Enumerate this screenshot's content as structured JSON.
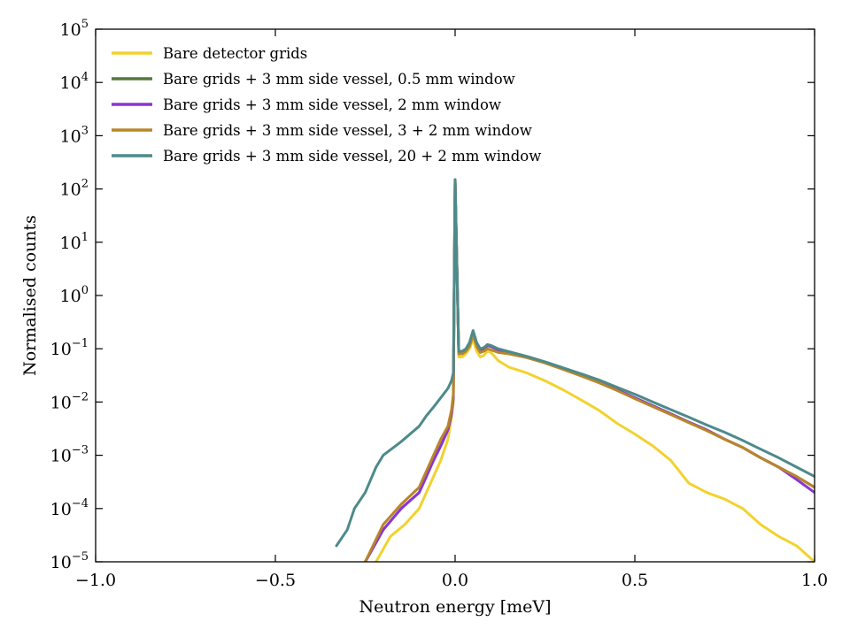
{
  "chart_data": {
    "type": "line",
    "title": "",
    "xlabel": "Neutron energy [meV]",
    "ylabel": "Normalised counts",
    "xlim": [
      -1.0,
      1.0
    ],
    "ylim_log10": [
      -5,
      5
    ],
    "y_scale": "log",
    "grid": false,
    "legend_position": "top-left",
    "x_ticks": [
      {
        "value": -1.0,
        "label": "−1.0"
      },
      {
        "value": -0.5,
        "label": "−0.5"
      },
      {
        "value": 0.0,
        "label": "0.0"
      },
      {
        "value": 0.5,
        "label": "0.5"
      },
      {
        "value": 1.0,
        "label": "1.0"
      }
    ],
    "y_ticks": [
      {
        "exp": -5,
        "base": "10",
        "sup": "−5"
      },
      {
        "exp": -4,
        "base": "10",
        "sup": "−4"
      },
      {
        "exp": -3,
        "base": "10",
        "sup": "−3"
      },
      {
        "exp": -2,
        "base": "10",
        "sup": "−2"
      },
      {
        "exp": -1,
        "base": "10",
        "sup": "−1"
      },
      {
        "exp": 0,
        "base": "10",
        "sup": "0"
      },
      {
        "exp": 1,
        "base": "10",
        "sup": "1"
      },
      {
        "exp": 2,
        "base": "10",
        "sup": "2"
      },
      {
        "exp": 3,
        "base": "10",
        "sup": "3"
      },
      {
        "exp": 4,
        "base": "10",
        "sup": "4"
      },
      {
        "exp": 5,
        "base": "10",
        "sup": "5"
      }
    ],
    "series": [
      {
        "name": "Bare detector grids",
        "color": "#f2d22e",
        "x": [
          -0.22,
          -0.18,
          -0.14,
          -0.1,
          -0.08,
          -0.06,
          -0.04,
          -0.02,
          -0.01,
          -0.005,
          0.0,
          0.01,
          0.02,
          0.03,
          0.04,
          0.05,
          0.06,
          0.07,
          0.08,
          0.09,
          0.1,
          0.12,
          0.15,
          0.2,
          0.25,
          0.3,
          0.35,
          0.4,
          0.45,
          0.5,
          0.55,
          0.6,
          0.65,
          0.7,
          0.75,
          0.8,
          0.85,
          0.9,
          0.95,
          1.0
        ],
        "y": [
          1e-05,
          3e-05,
          5e-05,
          0.0001,
          0.0002,
          0.0004,
          0.0008,
          0.002,
          0.005,
          0.01,
          150,
          0.07,
          0.07,
          0.08,
          0.1,
          0.15,
          0.09,
          0.07,
          0.075,
          0.09,
          0.085,
          0.06,
          0.045,
          0.035,
          0.025,
          0.017,
          0.011,
          0.007,
          0.004,
          0.0025,
          0.0015,
          0.0008,
          0.0003,
          0.0002,
          0.00015,
          0.0001,
          5e-05,
          3e-05,
          2e-05,
          1e-05
        ]
      },
      {
        "name": "Bare grids + 3 mm side vessel, 0.5 mm window",
        "color": "#55793d",
        "x": [
          -0.25,
          -0.2,
          -0.15,
          -0.1,
          -0.08,
          -0.06,
          -0.04,
          -0.02,
          -0.01,
          -0.005,
          0.0,
          0.01,
          0.02,
          0.03,
          0.04,
          0.05,
          0.06,
          0.07,
          0.08,
          0.09,
          0.1,
          0.12,
          0.15,
          0.2,
          0.25,
          0.3,
          0.35,
          0.4,
          0.45,
          0.5,
          0.55,
          0.6,
          0.65,
          0.7,
          0.75,
          0.8,
          0.85,
          0.9,
          0.95,
          1.0
        ],
        "y": [
          1e-05,
          4e-05,
          0.0001,
          0.0002,
          0.0004,
          0.0008,
          0.0015,
          0.003,
          0.006,
          0.012,
          150,
          0.085,
          0.085,
          0.095,
          0.12,
          0.2,
          0.12,
          0.095,
          0.1,
          0.115,
          0.11,
          0.095,
          0.085,
          0.07,
          0.055,
          0.042,
          0.032,
          0.024,
          0.017,
          0.012,
          0.0085,
          0.006,
          0.0042,
          0.003,
          0.002,
          0.0014,
          0.0009,
          0.0006,
          0.0004,
          0.00025
        ]
      },
      {
        "name": "Bare grids + 3 mm side vessel, 2 mm window",
        "color": "#8b35d6",
        "x": [
          -0.25,
          -0.2,
          -0.15,
          -0.1,
          -0.08,
          -0.06,
          -0.04,
          -0.02,
          -0.01,
          -0.005,
          0.0,
          0.01,
          0.02,
          0.03,
          0.04,
          0.05,
          0.06,
          0.07,
          0.08,
          0.09,
          0.1,
          0.12,
          0.15,
          0.2,
          0.25,
          0.3,
          0.35,
          0.4,
          0.45,
          0.5,
          0.55,
          0.6,
          0.65,
          0.7,
          0.75,
          0.8,
          0.85,
          0.9,
          0.95,
          1.0
        ],
        "y": [
          1e-05,
          4e-05,
          0.0001,
          0.0002,
          0.0004,
          0.0008,
          0.0015,
          0.003,
          0.006,
          0.012,
          150,
          0.085,
          0.085,
          0.095,
          0.12,
          0.2,
          0.12,
          0.095,
          0.1,
          0.115,
          0.11,
          0.095,
          0.085,
          0.07,
          0.055,
          0.042,
          0.032,
          0.024,
          0.017,
          0.012,
          0.0085,
          0.006,
          0.0042,
          0.003,
          0.002,
          0.0014,
          0.0009,
          0.0006,
          0.00035,
          0.0002
        ]
      },
      {
        "name": "Bare grids + 3 mm side vessel, 3 + 2 mm window",
        "color": "#b8862a",
        "x": [
          -0.25,
          -0.2,
          -0.15,
          -0.1,
          -0.08,
          -0.06,
          -0.04,
          -0.02,
          -0.01,
          -0.005,
          0.0,
          0.01,
          0.02,
          0.03,
          0.04,
          0.05,
          0.06,
          0.07,
          0.08,
          0.09,
          0.1,
          0.12,
          0.15,
          0.2,
          0.25,
          0.3,
          0.35,
          0.4,
          0.45,
          0.5,
          0.55,
          0.6,
          0.65,
          0.7,
          0.75,
          0.8,
          0.85,
          0.9,
          0.95,
          1.0
        ],
        "y": [
          1e-05,
          5e-05,
          0.00012,
          0.00025,
          0.0005,
          0.001,
          0.002,
          0.0035,
          0.007,
          0.014,
          150,
          0.08,
          0.08,
          0.09,
          0.11,
          0.18,
          0.11,
          0.085,
          0.09,
          0.1,
          0.095,
          0.085,
          0.08,
          0.068,
          0.054,
          0.041,
          0.031,
          0.023,
          0.0165,
          0.0115,
          0.0082,
          0.0058,
          0.0041,
          0.0029,
          0.002,
          0.0014,
          0.0009,
          0.0006,
          0.0004,
          0.00025
        ]
      },
      {
        "name": "Bare grids + 3 mm side vessel, 20 + 2 mm window",
        "color": "#4e8a8a",
        "x": [
          -0.33,
          -0.3,
          -0.28,
          -0.25,
          -0.22,
          -0.2,
          -0.15,
          -0.1,
          -0.08,
          -0.06,
          -0.04,
          -0.02,
          -0.01,
          -0.005,
          0.0,
          0.01,
          0.02,
          0.03,
          0.04,
          0.05,
          0.06,
          0.07,
          0.08,
          0.09,
          0.1,
          0.12,
          0.15,
          0.2,
          0.25,
          0.3,
          0.35,
          0.4,
          0.45,
          0.5,
          0.55,
          0.6,
          0.65,
          0.7,
          0.75,
          0.8,
          0.85,
          0.9,
          0.95,
          1.0
        ],
        "y": [
          2e-05,
          4e-05,
          0.0001,
          0.0002,
          0.0006,
          0.001,
          0.0018,
          0.0035,
          0.0055,
          0.008,
          0.012,
          0.018,
          0.025,
          0.035,
          150,
          0.09,
          0.09,
          0.1,
          0.13,
          0.22,
          0.13,
          0.1,
          0.105,
          0.12,
          0.115,
          0.1,
          0.088,
          0.072,
          0.057,
          0.044,
          0.034,
          0.026,
          0.019,
          0.014,
          0.01,
          0.0072,
          0.0052,
          0.0037,
          0.0027,
          0.0019,
          0.0013,
          0.0009,
          0.0006,
          0.0004
        ]
      }
    ]
  }
}
